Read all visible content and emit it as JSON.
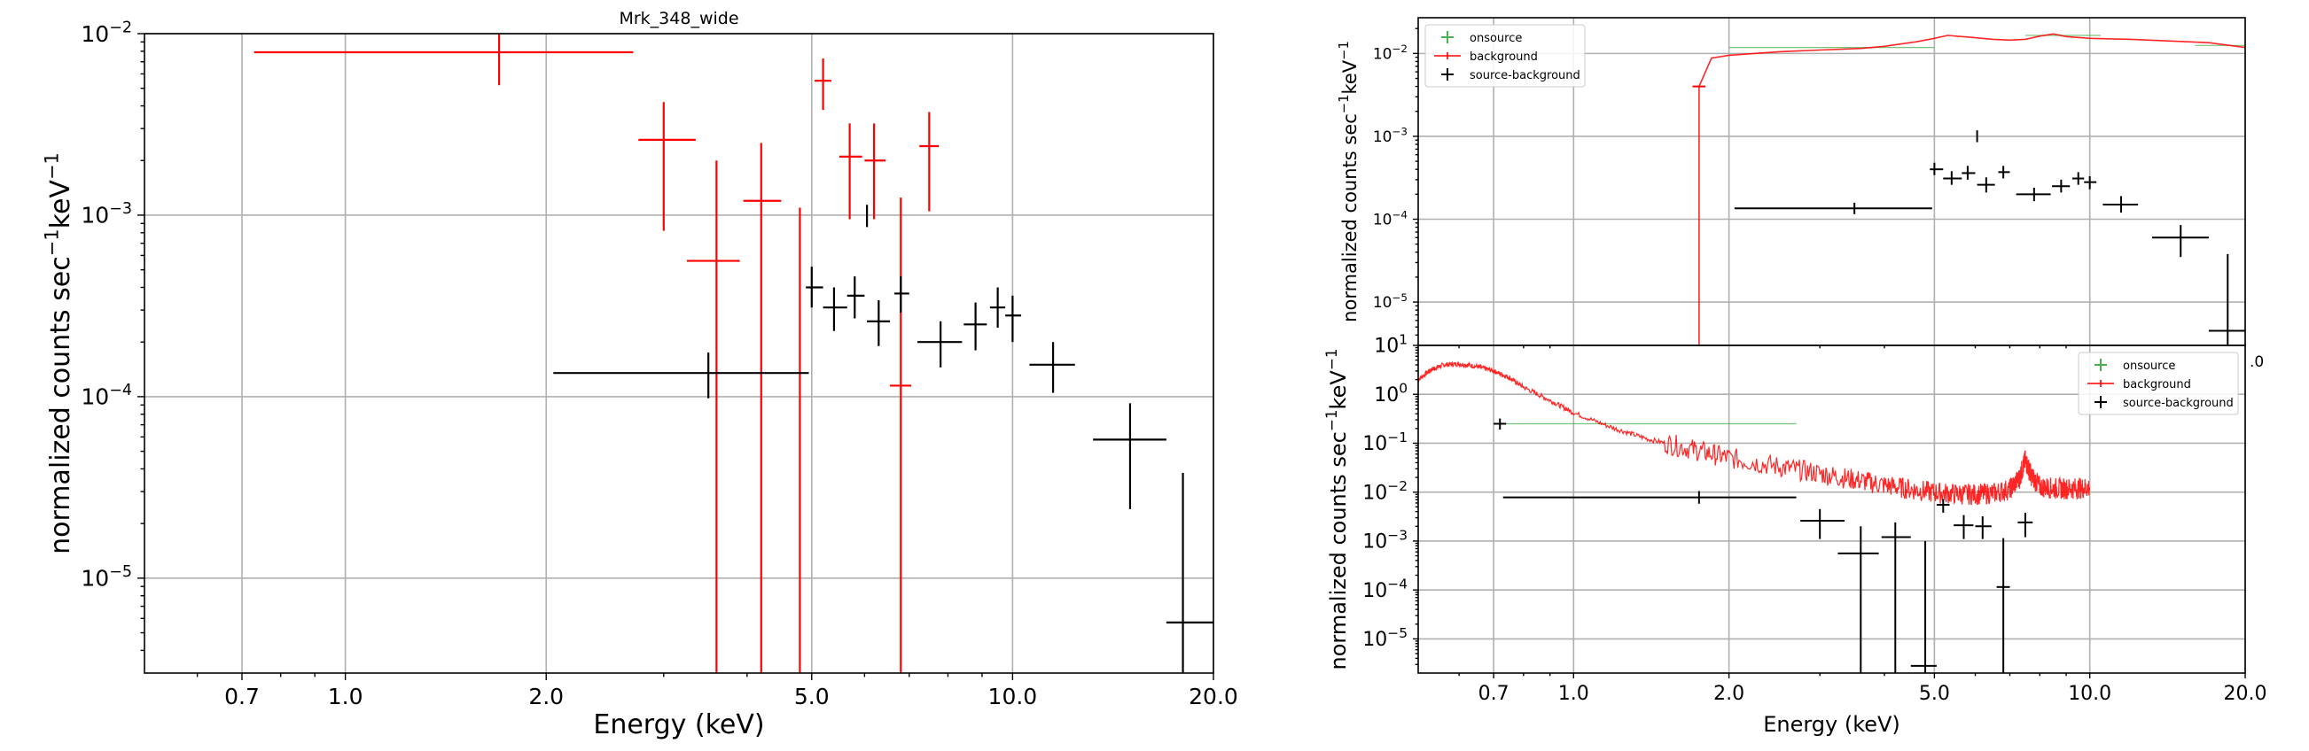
{
  "chart_data": [
    {
      "type": "scatter",
      "title": "Mrk_348_wide",
      "xlabel": "Energy (keV)",
      "ylabel": "normalized counts sec$^{-1}$keV$^{-1}$",
      "ylabel_parts": {
        "main": "normalized counts sec",
        "exp1": "−1",
        "mid": "keV",
        "exp2": "−1"
      },
      "xscale": "log",
      "yscale": "log",
      "xlim": [
        0.5,
        20.0
      ],
      "ylim": [
        3e-06,
        0.01
      ],
      "xticks": [
        {
          "v": 0.7,
          "label": "0.7"
        },
        {
          "v": 1.0,
          "label": "1.0"
        },
        {
          "v": 2.0,
          "label": "2.0"
        },
        {
          "v": 5.0,
          "label": "5.0"
        },
        {
          "v": 10.0,
          "label": "10.0"
        },
        {
          "v": 20.0,
          "label": "20.0"
        }
      ],
      "yticks": [
        {
          "v": 1e-05,
          "base": "10",
          "exp": "−5"
        },
        {
          "v": 0.0001,
          "base": "10",
          "exp": "−4"
        },
        {
          "v": 0.001,
          "base": "10",
          "exp": "−3"
        },
        {
          "v": 0.01,
          "base": "10",
          "exp": "−2"
        }
      ],
      "grid": true,
      "series": [
        {
          "color": "#ff0000",
          "points": [
            {
              "x": 1.7,
              "y": 0.0079,
              "xlo": 0.73,
              "xhi": 2.7,
              "ylo": 0.0052,
              "yhi": 0.0102
            },
            {
              "x": 3.0,
              "y": 0.0026,
              "xlo": 2.75,
              "xhi": 3.35,
              "ylo": 0.00082,
              "yhi": 0.0042
            },
            {
              "x": 3.6,
              "y": 0.00056,
              "xlo": 3.25,
              "xhi": 3.9,
              "ylo": 3e-06,
              "yhi": 0.002
            },
            {
              "x": 4.2,
              "y": 0.0012,
              "xlo": 3.95,
              "xhi": 4.5,
              "ylo": 3e-06,
              "yhi": 0.0025
            },
            {
              "x": 4.8,
              "y": 0.00011,
              "xlo": 4.8,
              "xhi": 4.8,
              "ylo": 3e-06,
              "yhi": 0.0011
            },
            {
              "x": 5.2,
              "y": 0.0055,
              "xlo": 5.05,
              "xhi": 5.35,
              "ylo": 0.0038,
              "yhi": 0.0073
            },
            {
              "x": 5.7,
              "y": 0.0021,
              "xlo": 5.5,
              "xhi": 5.95,
              "ylo": 0.00095,
              "yhi": 0.0032
            },
            {
              "x": 6.2,
              "y": 0.002,
              "xlo": 6.0,
              "xhi": 6.45,
              "ylo": 0.00095,
              "yhi": 0.0032
            },
            {
              "x": 6.8,
              "y": 0.000115,
              "xlo": 6.55,
              "xhi": 7.05,
              "ylo": 3e-06,
              "yhi": 0.00125
            },
            {
              "x": 7.5,
              "y": 0.0024,
              "xlo": 7.25,
              "xhi": 7.75,
              "ylo": 0.00105,
              "yhi": 0.0037
            }
          ]
        },
        {
          "color": "#000000",
          "points": [
            {
              "x": 3.5,
              "y": 0.000135,
              "xlo": 2.05,
              "xhi": 4.95,
              "ylo": 9.8e-05,
              "yhi": 0.000175
            },
            {
              "x": 5.0,
              "y": 0.0004,
              "xlo": 4.9,
              "xhi": 5.2,
              "ylo": 0.00031,
              "yhi": 0.00052
            },
            {
              "x": 5.4,
              "y": 0.00031,
              "xlo": 5.2,
              "xhi": 5.65,
              "ylo": 0.00023,
              "yhi": 0.0004
            },
            {
              "x": 5.8,
              "y": 0.00036,
              "xlo": 5.65,
              "xhi": 6.0,
              "ylo": 0.00027,
              "yhi": 0.00046
            },
            {
              "x": 6.05,
              "y": 0.001,
              "xlo": 6.05,
              "xhi": 6.05,
              "ylo": 0.00086,
              "yhi": 0.00114
            },
            {
              "x": 6.3,
              "y": 0.00026,
              "xlo": 6.05,
              "xhi": 6.55,
              "ylo": 0.00019,
              "yhi": 0.00034
            },
            {
              "x": 6.8,
              "y": 0.00037,
              "xlo": 6.65,
              "xhi": 7.0,
              "ylo": 0.00029,
              "yhi": 0.00046
            },
            {
              "x": 7.8,
              "y": 0.0002,
              "xlo": 7.2,
              "xhi": 8.4,
              "ylo": 0.000145,
              "yhi": 0.00026
            },
            {
              "x": 8.8,
              "y": 0.00025,
              "xlo": 8.45,
              "xhi": 9.15,
              "ylo": 0.00018,
              "yhi": 0.00033
            },
            {
              "x": 9.5,
              "y": 0.00031,
              "xlo": 9.25,
              "xhi": 9.75,
              "ylo": 0.00024,
              "yhi": 0.0004
            },
            {
              "x": 10.0,
              "y": 0.00028,
              "xlo": 9.75,
              "xhi": 10.3,
              "ylo": 0.0002,
              "yhi": 0.00036
            },
            {
              "x": 11.5,
              "y": 0.00015,
              "xlo": 10.6,
              "xhi": 12.4,
              "ylo": 0.000105,
              "yhi": 0.0002
            },
            {
              "x": 15.0,
              "y": 5.8e-05,
              "xlo": 13.2,
              "xhi": 17.0,
              "ylo": 2.4e-05,
              "yhi": 9.2e-05
            },
            {
              "x": 18.0,
              "y": 5.7e-06,
              "xlo": 17.0,
              "xhi": 20.0,
              "ylo": 3e-06,
              "yhi": 3.8e-05
            }
          ]
        }
      ]
    },
    {
      "type": "line",
      "title": "",
      "xlabel": "",
      "ylabel": "normalized counts sec$^{-1}$keV$^{-1}$",
      "ylabel_parts": {
        "main": "normalized counts sec",
        "exp1": "−1",
        "mid": "keV",
        "exp2": "−1"
      },
      "xscale": "log",
      "yscale": "log",
      "xlim": [
        0.5,
        20.0
      ],
      "ylim": [
        3e-06,
        0.027
      ],
      "xticks": [],
      "yticks": [
        {
          "v": 1e-05,
          "base": "10",
          "exp": "−5"
        },
        {
          "v": 0.0001,
          "base": "10",
          "exp": "−4"
        },
        {
          "v": 0.001,
          "base": "10",
          "exp": "−3"
        },
        {
          "v": 0.01,
          "base": "10",
          "exp": "−2"
        }
      ],
      "grid": true,
      "legend": {
        "placement": "top-left",
        "entries": [
          {
            "label": "onsource",
            "marker": "plus",
            "color": "#4caf50"
          },
          {
            "label": "background",
            "marker": "line",
            "color": "#ff0000"
          },
          {
            "label": "source-background",
            "marker": "plus",
            "color": "#000000"
          }
        ]
      },
      "series": [
        {
          "name": "onsource",
          "color": "#4caf50",
          "points": [
            {
              "x": 3.5,
              "y": 0.0118,
              "xlo": 2.0,
              "xhi": 5.0,
              "ylo": 0.0118,
              "yhi": 0.0118
            },
            {
              "x": 9.0,
              "y": 0.0165,
              "xlo": 7.5,
              "xhi": 10.5,
              "ylo": 0.0165,
              "yhi": 0.0165
            },
            {
              "x": 18.0,
              "y": 0.0125,
              "xlo": 16.0,
              "xhi": 20.0,
              "ylo": 0.0125,
              "yhi": 0.0125
            }
          ]
        },
        {
          "name": "background",
          "color": "#ff0000",
          "line": [
            [
              1.75,
              3e-06
            ],
            [
              1.75,
              0.004
            ],
            [
              1.85,
              0.0088
            ],
            [
              2.0,
              0.0095
            ],
            [
              2.5,
              0.0105
            ],
            [
              3.0,
              0.011
            ],
            [
              3.6,
              0.0115
            ],
            [
              4.0,
              0.0122
            ],
            [
              4.6,
              0.0138
            ],
            [
              5.0,
              0.0152
            ],
            [
              5.3,
              0.0165
            ],
            [
              5.8,
              0.0158
            ],
            [
              6.5,
              0.0148
            ],
            [
              7.0,
              0.0145
            ],
            [
              7.5,
              0.0148
            ],
            [
              8.0,
              0.0162
            ],
            [
              8.5,
              0.0172
            ],
            [
              9.0,
              0.016
            ],
            [
              10.0,
              0.0152
            ],
            [
              12.0,
              0.0148
            ],
            [
              14.0,
              0.0142
            ],
            [
              17.0,
              0.0135
            ],
            [
              20.0,
              0.0118
            ]
          ],
          "points": [
            {
              "x": 1.75,
              "y": 0.004,
              "xlo": 1.7,
              "xhi": 1.8,
              "ylo": 0.004,
              "yhi": 0.004
            }
          ]
        },
        {
          "name": "source-background",
          "color": "#000000",
          "points": [
            {
              "x": 3.5,
              "y": 0.000135,
              "xlo": 2.05,
              "xhi": 4.95,
              "ylo": 0.000115,
              "yhi": 0.000158
            },
            {
              "x": 5.0,
              "y": 0.0004,
              "xlo": 4.9,
              "xhi": 5.2,
              "ylo": 0.00034,
              "yhi": 0.00048
            },
            {
              "x": 5.4,
              "y": 0.00031,
              "xlo": 5.2,
              "xhi": 5.65,
              "ylo": 0.00026,
              "yhi": 0.00038
            },
            {
              "x": 5.8,
              "y": 0.00036,
              "xlo": 5.65,
              "xhi": 6.0,
              "ylo": 0.0003,
              "yhi": 0.00044
            },
            {
              "x": 6.05,
              "y": 0.001,
              "xlo": 6.05,
              "xhi": 6.05,
              "ylo": 0.00085,
              "yhi": 0.00118
            },
            {
              "x": 6.3,
              "y": 0.00026,
              "xlo": 6.05,
              "xhi": 6.55,
              "ylo": 0.00021,
              "yhi": 0.00032
            },
            {
              "x": 6.8,
              "y": 0.00037,
              "xlo": 6.65,
              "xhi": 7.0,
              "ylo": 0.00031,
              "yhi": 0.00044
            },
            {
              "x": 7.8,
              "y": 0.0002,
              "xlo": 7.2,
              "xhi": 8.4,
              "ylo": 0.000165,
              "yhi": 0.00024
            },
            {
              "x": 8.8,
              "y": 0.00025,
              "xlo": 8.45,
              "xhi": 9.15,
              "ylo": 0.00021,
              "yhi": 0.0003
            },
            {
              "x": 9.5,
              "y": 0.00031,
              "xlo": 9.25,
              "xhi": 9.75,
              "ylo": 0.00026,
              "yhi": 0.00037
            },
            {
              "x": 10.0,
              "y": 0.00028,
              "xlo": 9.75,
              "xhi": 10.3,
              "ylo": 0.00023,
              "yhi": 0.00033
            },
            {
              "x": 11.5,
              "y": 0.00015,
              "xlo": 10.6,
              "xhi": 12.4,
              "ylo": 0.00012,
              "yhi": 0.00019
            },
            {
              "x": 15.0,
              "y": 6e-05,
              "xlo": 13.2,
              "xhi": 17.0,
              "ylo": 3.5e-05,
              "yhi": 8.5e-05
            },
            {
              "x": 18.5,
              "y": 4.5e-06,
              "xlo": 17.0,
              "xhi": 20.0,
              "ylo": 3e-06,
              "yhi": 3.8e-05
            }
          ]
        }
      ]
    },
    {
      "type": "line",
      "title": "",
      "xlabel": "Energy (keV)",
      "ylabel": "normalized counts sec$^{-1}$keV$^{-1}$",
      "ylabel_parts": {
        "main": "normalized counts sec",
        "exp1": "−1",
        "mid": "keV",
        "exp2": "−1"
      },
      "xscale": "log",
      "yscale": "log",
      "xlim": [
        0.5,
        20.0
      ],
      "ylim": [
        2e-06,
        10.0
      ],
      "xticks": [
        {
          "v": 0.7,
          "label": "0.7"
        },
        {
          "v": 1.0,
          "label": "1.0"
        },
        {
          "v": 2.0,
          "label": "2.0"
        },
        {
          "v": 5.0,
          "label": "5.0"
        },
        {
          "v": 10.0,
          "label": "10.0"
        },
        {
          "v": 20.0,
          "label": "20.0"
        }
      ],
      "yticks": [
        {
          "v": 1e-05,
          "base": "10",
          "exp": "−5"
        },
        {
          "v": 0.0001,
          "base": "10",
          "exp": "−4"
        },
        {
          "v": 0.001,
          "base": "10",
          "exp": "−3"
        },
        {
          "v": 0.01,
          "base": "10",
          "exp": "−2"
        },
        {
          "v": 0.1,
          "base": "10",
          "exp": "−1"
        },
        {
          "v": 1.0,
          "base": "10",
          "exp": "0"
        },
        {
          "v": 10.0,
          "base": "10",
          "exp": "1"
        }
      ],
      "grid": true,
      "legend": {
        "placement": "top-right",
        "entries": [
          {
            "label": "onsource",
            "marker": "plus",
            "color": "#4caf50"
          },
          {
            "label": "background",
            "marker": "line",
            "color": "#ff0000"
          },
          {
            "label": "source-background",
            "marker": "plus",
            "color": "#000000"
          }
        ]
      },
      "series": [
        {
          "name": "onsource",
          "color": "#4caf50",
          "points": [
            {
              "x": 1.6,
              "y": 0.25,
              "xlo": 0.72,
              "xhi": 2.7,
              "ylo": 0.25,
              "yhi": 0.25
            }
          ]
        },
        {
          "name": "background",
          "color": "#ff0000",
          "noisy": true,
          "line": [
            [
              0.5,
              2.0
            ],
            [
              0.53,
              3.2
            ],
            [
              0.56,
              4.0
            ],
            [
              0.6,
              4.2
            ],
            [
              0.65,
              3.7
            ],
            [
              0.7,
              3.0
            ],
            [
              0.75,
              2.2
            ],
            [
              0.8,
              1.4
            ],
            [
              0.9,
              0.75
            ],
            [
              1.0,
              0.42
            ],
            [
              1.2,
              0.2
            ],
            [
              1.4,
              0.12
            ],
            [
              1.7,
              0.075
            ],
            [
              2.0,
              0.05
            ],
            [
              2.5,
              0.033
            ],
            [
              3.0,
              0.024
            ],
            [
              3.5,
              0.018
            ],
            [
              4.0,
              0.014
            ],
            [
              4.5,
              0.0115
            ],
            [
              5.0,
              0.0098
            ],
            [
              5.5,
              0.0092
            ],
            [
              6.0,
              0.009
            ],
            [
              6.5,
              0.0095
            ],
            [
              7.0,
              0.0115
            ],
            [
              7.3,
              0.019
            ],
            [
              7.5,
              0.045
            ],
            [
              7.7,
              0.022
            ],
            [
              8.0,
              0.013
            ],
            [
              8.5,
              0.012
            ],
            [
              9.0,
              0.0118
            ],
            [
              9.5,
              0.012
            ],
            [
              10.0,
              0.0125
            ]
          ]
        },
        {
          "name": "source-background",
          "color": "#000000",
          "points": [
            {
              "x": 0.72,
              "y": 0.25,
              "xlo": 0.7,
              "xhi": 0.74,
              "ylo": 0.19,
              "yhi": 0.32
            },
            {
              "x": 1.75,
              "y": 0.0078,
              "xlo": 0.73,
              "xhi": 2.7,
              "ylo": 0.0058,
              "yhi": 0.0105
            },
            {
              "x": 3.0,
              "y": 0.0026,
              "xlo": 2.75,
              "xhi": 3.35,
              "ylo": 0.0011,
              "yhi": 0.0045
            },
            {
              "x": 3.6,
              "y": 0.00056,
              "xlo": 3.25,
              "xhi": 3.9,
              "ylo": 2e-06,
              "yhi": 0.002
            },
            {
              "x": 4.2,
              "y": 0.0012,
              "xlo": 3.95,
              "xhi": 4.5,
              "ylo": 2e-06,
              "yhi": 0.0024
            },
            {
              "x": 4.8,
              "y": 2.8e-06,
              "xlo": 4.5,
              "xhi": 5.05,
              "ylo": 2e-06,
              "yhi": 0.001
            },
            {
              "x": 5.2,
              "y": 0.0055,
              "xlo": 5.05,
              "xhi": 5.35,
              "ylo": 0.0038,
              "yhi": 0.0072
            },
            {
              "x": 5.7,
              "y": 0.0021,
              "xlo": 5.45,
              "xhi": 5.95,
              "ylo": 0.0011,
              "yhi": 0.0034
            },
            {
              "x": 6.2,
              "y": 0.002,
              "xlo": 6.0,
              "xhi": 6.45,
              "ylo": 0.0011,
              "yhi": 0.0032
            },
            {
              "x": 6.8,
              "y": 0.000115,
              "xlo": 6.6,
              "xhi": 7.0,
              "ylo": 2e-06,
              "yhi": 0.00115
            },
            {
              "x": 7.5,
              "y": 0.0024,
              "xlo": 7.25,
              "xhi": 7.75,
              "ylo": 0.0012,
              "yhi": 0.0038
            }
          ]
        }
      ]
    }
  ],
  "overlap_text": ".0"
}
